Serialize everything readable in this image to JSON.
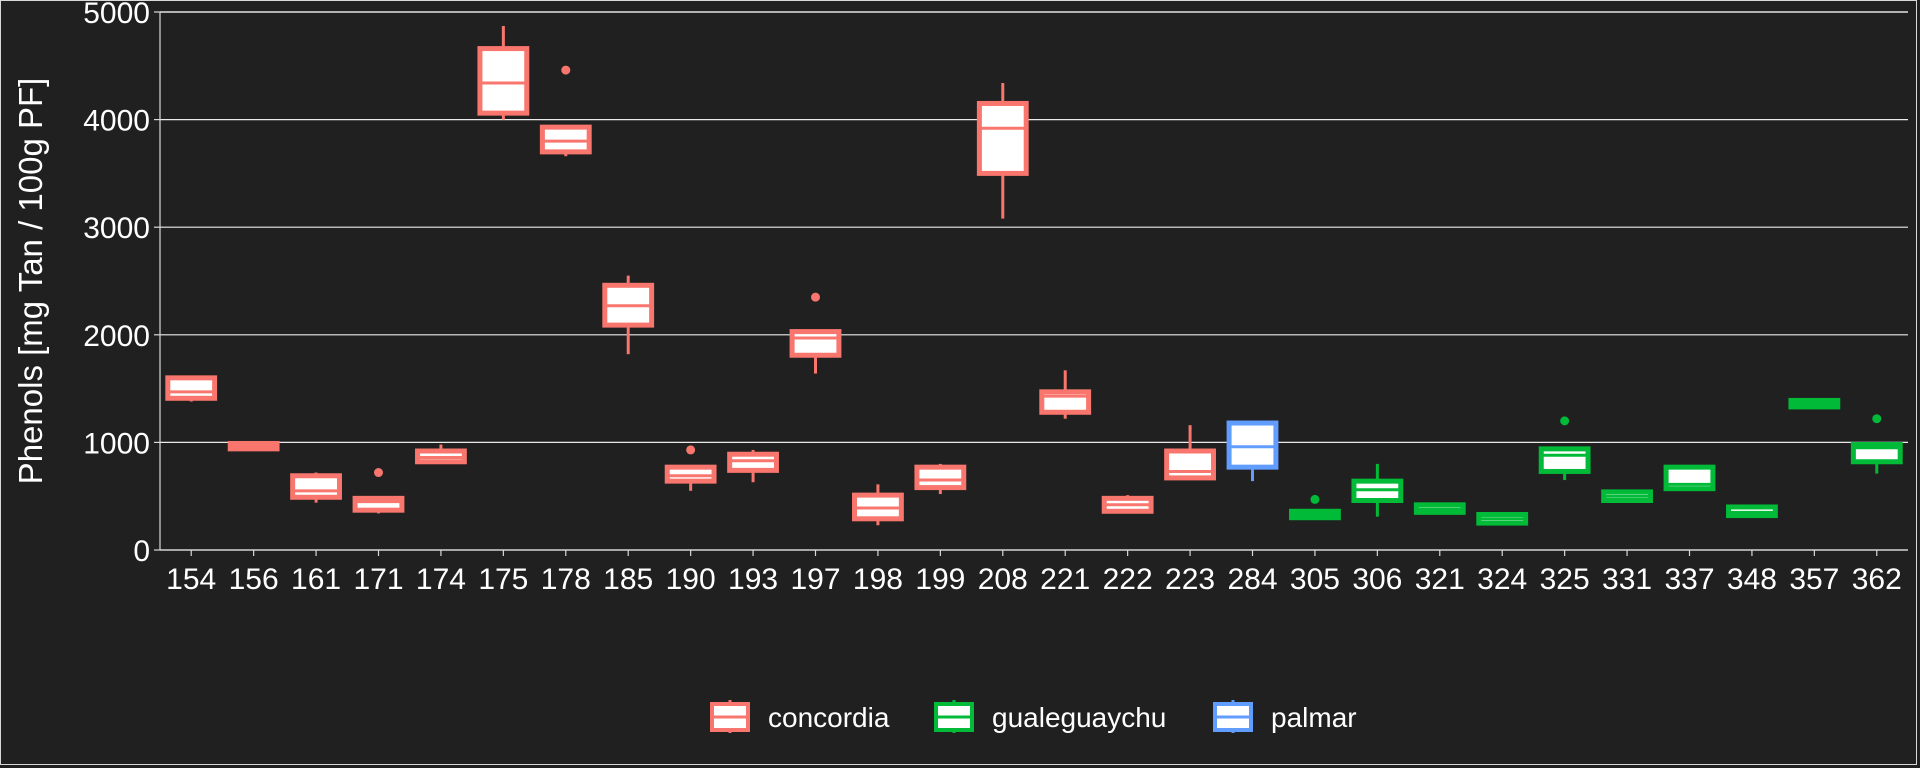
{
  "chart_data": {
    "type": "box",
    "title": "",
    "xlabel": "",
    "ylabel": "Phenols [mg Tan / 100g PF]",
    "ylim": [
      0,
      5000
    ],
    "yticks": [
      0,
      1000,
      2000,
      3000,
      4000,
      5000
    ],
    "grid": true,
    "legend_position": "bottom",
    "groups": [
      {
        "name": "concordia",
        "color": "#f8766d"
      },
      {
        "name": "gualeguaychu",
        "color": "#00ba38"
      },
      {
        "name": "palmar",
        "color": "#619cff"
      }
    ],
    "boxes": [
      {
        "category": "154",
        "group": "concordia",
        "min": 1380,
        "q1": 1410,
        "median": 1470,
        "q3": 1600,
        "max": 1620,
        "outliers": []
      },
      {
        "category": "156",
        "group": "concordia",
        "min": 930,
        "q1": 940,
        "median": 960,
        "q3": 990,
        "max": 1010,
        "outliers": []
      },
      {
        "category": "161",
        "group": "concordia",
        "min": 440,
        "q1": 490,
        "median": 550,
        "q3": 690,
        "max": 720,
        "outliers": []
      },
      {
        "category": "171",
        "group": "concordia",
        "min": 340,
        "q1": 370,
        "median": 450,
        "q3": 480,
        "max": 500,
        "outliers": [
          720
        ]
      },
      {
        "category": "174",
        "group": "concordia",
        "min": 820,
        "q1": 820,
        "median": 860,
        "q3": 920,
        "max": 980,
        "outliers": []
      },
      {
        "category": "175",
        "group": "concordia",
        "min": 4000,
        "q1": 4060,
        "median": 4340,
        "q3": 4660,
        "max": 4870,
        "outliers": []
      },
      {
        "category": "178",
        "group": "concordia",
        "min": 3660,
        "q1": 3700,
        "median": 3800,
        "q3": 3930,
        "max": 3940,
        "outliers": [
          4460
        ]
      },
      {
        "category": "185",
        "group": "concordia",
        "min": 1820,
        "q1": 2090,
        "median": 2270,
        "q3": 2460,
        "max": 2550,
        "outliers": []
      },
      {
        "category": "190",
        "group": "concordia",
        "min": 550,
        "q1": 640,
        "median": 690,
        "q3": 770,
        "max": 780,
        "outliers": [
          930
        ]
      },
      {
        "category": "193",
        "group": "concordia",
        "min": 630,
        "q1": 740,
        "median": 830,
        "q3": 890,
        "max": 930,
        "outliers": []
      },
      {
        "category": "197",
        "group": "concordia",
        "min": 1640,
        "q1": 1810,
        "median": 1970,
        "q3": 2030,
        "max": 2040,
        "outliers": [
          2350
        ]
      },
      {
        "category": "198",
        "group": "concordia",
        "min": 230,
        "q1": 290,
        "median": 390,
        "q3": 510,
        "max": 610,
        "outliers": []
      },
      {
        "category": "199",
        "group": "concordia",
        "min": 520,
        "q1": 580,
        "median": 650,
        "q3": 770,
        "max": 800,
        "outliers": []
      },
      {
        "category": "208",
        "group": "concordia",
        "min": 3080,
        "q1": 3500,
        "median": 3920,
        "q3": 4150,
        "max": 4340,
        "outliers": []
      },
      {
        "category": "221",
        "group": "concordia",
        "min": 1220,
        "q1": 1280,
        "median": 1430,
        "q3": 1470,
        "max": 1670,
        "outliers": []
      },
      {
        "category": "222",
        "group": "concordia",
        "min": 350,
        "q1": 360,
        "median": 420,
        "q3": 480,
        "max": 510,
        "outliers": []
      },
      {
        "category": "223",
        "group": "concordia",
        "min": 650,
        "q1": 670,
        "median": 730,
        "q3": 920,
        "max": 1160,
        "outliers": []
      },
      {
        "category": "284",
        "group": "palmar",
        "min": 640,
        "q1": 770,
        "median": 960,
        "q3": 1180,
        "max": 1200,
        "outliers": []
      },
      {
        "category": "305",
        "group": "gualeguaychu",
        "min": 290,
        "q1": 300,
        "median": 330,
        "q3": 360,
        "max": 380,
        "outliers": [
          470
        ]
      },
      {
        "category": "306",
        "group": "gualeguaychu",
        "min": 310,
        "q1": 460,
        "median": 560,
        "q3": 640,
        "max": 800,
        "outliers": []
      },
      {
        "category": "321",
        "group": "gualeguaychu",
        "min": 330,
        "q1": 350,
        "median": 380,
        "q3": 420,
        "max": 420,
        "outliers": []
      },
      {
        "category": "324",
        "group": "gualeguaychu",
        "min": 240,
        "q1": 250,
        "median": 290,
        "q3": 330,
        "max": 330,
        "outliers": []
      },
      {
        "category": "325",
        "group": "gualeguaychu",
        "min": 650,
        "q1": 730,
        "median": 880,
        "q3": 940,
        "max": 940,
        "outliers": [
          1200
        ]
      },
      {
        "category": "331",
        "group": "gualeguaychu",
        "min": 450,
        "q1": 460,
        "median": 500,
        "q3": 540,
        "max": 540,
        "outliers": []
      },
      {
        "category": "337",
        "group": "gualeguaychu",
        "min": 560,
        "q1": 570,
        "median": 610,
        "q3": 770,
        "max": 780,
        "outliers": []
      },
      {
        "category": "348",
        "group": "gualeguaychu",
        "min": 300,
        "q1": 320,
        "median": 350,
        "q3": 400,
        "max": 410,
        "outliers": []
      },
      {
        "category": "357",
        "group": "gualeguaychu",
        "min": 1320,
        "q1": 1330,
        "median": 1360,
        "q3": 1390,
        "max": 1400,
        "outliers": []
      },
      {
        "category": "362",
        "group": "gualeguaychu",
        "min": 710,
        "q1": 820,
        "median": 950,
        "q3": 980,
        "max": 980,
        "outliers": [
          1220
        ]
      }
    ]
  }
}
